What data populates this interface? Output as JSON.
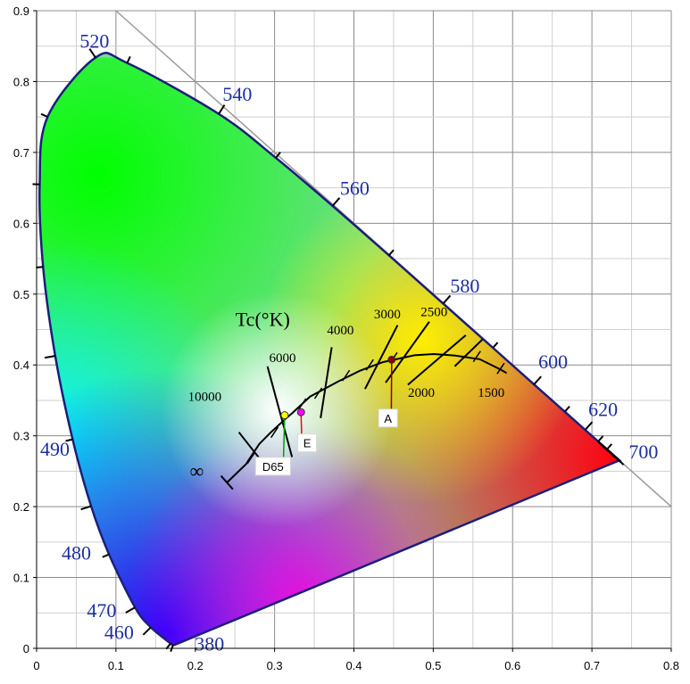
{
  "chart_data": {
    "type": "scatter",
    "xlim": [
      0,
      0.8
    ],
    "ylim": [
      0,
      0.9
    ],
    "x_ticks": [
      "0",
      "0.1",
      "0.2",
      "0.3",
      "0.4",
      "0.5",
      "0.6",
      "0.7",
      "0.8"
    ],
    "y_ticks": [
      "0",
      "0.1",
      "0.2",
      "0.3",
      "0.4",
      "0.5",
      "0.6",
      "0.7",
      "0.8",
      "0.9"
    ],
    "grid": true,
    "spectral_locus": [
      {
        "nm": "380",
        "x": 0.1741,
        "y": 0.005
      },
      {
        "nm": "",
        "x": 0.1738,
        "y": 0.0049
      },
      {
        "nm": "",
        "x": 0.1721,
        "y": 0.0048
      },
      {
        "nm": "",
        "x": 0.1689,
        "y": 0.0069
      },
      {
        "nm": "460",
        "x": 0.144,
        "y": 0.0297
      },
      {
        "nm": "470",
        "x": 0.1241,
        "y": 0.0578
      },
      {
        "nm": "",
        "x": 0.0913,
        "y": 0.1327
      },
      {
        "nm": "480",
        "x": 0.0687,
        "y": 0.2007
      },
      {
        "nm": "",
        "x": 0.0454,
        "y": 0.295
      },
      {
        "nm": "490",
        "x": 0.0235,
        "y": 0.4127
      },
      {
        "nm": "",
        "x": 0.0082,
        "y": 0.5384
      },
      {
        "nm": "",
        "x": 0.0039,
        "y": 0.6548
      },
      {
        "nm": "",
        "x": 0.0139,
        "y": 0.7502
      },
      {
        "nm": "520",
        "x": 0.0743,
        "y": 0.8338
      },
      {
        "nm": "",
        "x": 0.1142,
        "y": 0.8262
      },
      {
        "nm": "540",
        "x": 0.2296,
        "y": 0.7543
      },
      {
        "nm": "",
        "x": 0.3016,
        "y": 0.6923
      },
      {
        "nm": "560",
        "x": 0.3731,
        "y": 0.6245
      },
      {
        "nm": "",
        "x": 0.4441,
        "y": 0.5547
      },
      {
        "nm": "580",
        "x": 0.5125,
        "y": 0.4866
      },
      {
        "nm": "",
        "x": 0.5752,
        "y": 0.4242
      },
      {
        "nm": "600",
        "x": 0.627,
        "y": 0.3725
      },
      {
        "nm": "",
        "x": 0.6658,
        "y": 0.334
      },
      {
        "nm": "620",
        "x": 0.6915,
        "y": 0.3083
      },
      {
        "nm": "",
        "x": 0.7079,
        "y": 0.292
      },
      {
        "nm": "",
        "x": 0.719,
        "y": 0.2809
      },
      {
        "nm": "",
        "x": 0.7347,
        "y": 0.2653
      },
      {
        "nm": "700",
        "x": 0.7347,
        "y": 0.2653
      }
    ],
    "wavelength_labels": [
      {
        "text": "520",
        "x": 0.073,
        "y": 0.848
      },
      {
        "text": "540",
        "x": 0.253,
        "y": 0.773
      },
      {
        "text": "560",
        "x": 0.401,
        "y": 0.64
      },
      {
        "text": "580",
        "x": 0.54,
        "y": 0.502
      },
      {
        "text": "600",
        "x": 0.651,
        "y": 0.395
      },
      {
        "text": "620",
        "x": 0.714,
        "y": 0.328
      },
      {
        "text": "700",
        "x": 0.765,
        "y": 0.268
      },
      {
        "text": "490",
        "x": 0.023,
        "y": 0.272
      },
      {
        "text": "480",
        "x": 0.05,
        "y": 0.125
      },
      {
        "text": "470",
        "x": 0.082,
        "y": 0.044
      },
      {
        "text": "460",
        "x": 0.104,
        "y": 0.013
      },
      {
        "text": "380",
        "x": 0.218,
        "y": -0.003
      }
    ],
    "planckian_locus": [
      [
        0.2399,
        0.234
      ],
      [
        0.2637,
        0.2596
      ],
      [
        0.2806,
        0.2883
      ],
      [
        0.2952,
        0.3048
      ],
      [
        0.3135,
        0.3237
      ],
      [
        0.3221,
        0.3318
      ],
      [
        0.3447,
        0.3553
      ],
      [
        0.3805,
        0.3768
      ],
      [
        0.4073,
        0.3917
      ],
      [
        0.4369,
        0.4041
      ],
      [
        0.4762,
        0.4137
      ],
      [
        0.5007,
        0.4154
      ],
      [
        0.5267,
        0.4133
      ],
      [
        0.5586,
        0.4081
      ],
      [
        0.5856,
        0.3931
      ],
      [
        0.5925,
        0.3885
      ]
    ],
    "cct_labels": [
      {
        "text": "10000",
        "x": 0.212,
        "y": 0.349
      },
      {
        "text": "6000",
        "x": 0.31,
        "y": 0.404
      },
      {
        "text": "4000",
        "x": 0.383,
        "y": 0.443
      },
      {
        "text": "3000",
        "x": 0.442,
        "y": 0.466
      },
      {
        "text": "2500",
        "x": 0.501,
        "y": 0.469
      },
      {
        "text": "2000",
        "x": 0.485,
        "y": 0.355
      },
      {
        "text": "1500",
        "x": 0.573,
        "y": 0.355
      }
    ],
    "infinity_label": "∞",
    "tc_label": "Tc(°K)",
    "reference_points": [
      {
        "name": "A",
        "x": 0.4476,
        "y": 0.4074,
        "color": "#8b0000",
        "label_x": 0.443,
        "label_y": 0.325
      },
      {
        "name": "E",
        "x": 0.3333,
        "y": 0.3333,
        "color": "#ff00ff",
        "label_x": 0.341,
        "label_y": 0.29
      },
      {
        "name": "D65",
        "x": 0.3127,
        "y": 0.329,
        "color": "#ffff00",
        "label_x": 0.298,
        "label_y": 0.257
      }
    ]
  }
}
